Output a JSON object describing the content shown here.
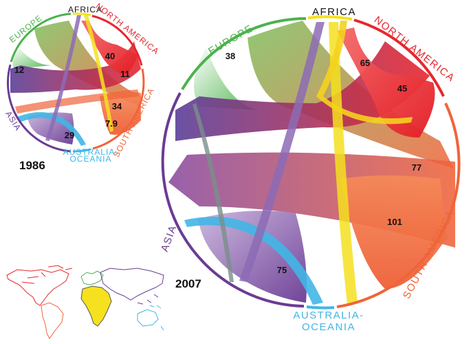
{
  "colors": {
    "africa": "#f5e11e",
    "europe": "#4bb34b",
    "north_america": "#e8262e",
    "south_america": "#f0643a",
    "asia": "#6b3b94",
    "oceania": "#41b6e6"
  },
  "small_diagram": {
    "year": "1986",
    "regions": {
      "africa": "AFRICA",
      "europe": "EUROPE",
      "north_america": "NORTH AMERICA",
      "south_america": "SOUTH AMERICA",
      "asia": "ASIA",
      "oceania_line1": "AUSTRALIA-",
      "oceania_line2": "OCEANIA"
    },
    "values": [
      "40",
      "12",
      "11",
      "34",
      "7.9",
      "29"
    ]
  },
  "large_diagram": {
    "year": "2007",
    "regions": {
      "africa": "AFRICA",
      "europe": "EUROPE",
      "north_america": "NORTH AMERICA",
      "south_america": "SOUTH AMERICA",
      "asia": "ASIA",
      "oceania_line1": "AUSTRALIA-",
      "oceania_line2": "OCEANIA"
    },
    "values": [
      "38",
      "65",
      "45",
      "77",
      "101",
      "75"
    ]
  },
  "map": {
    "legend_icon": "world-map-icon"
  }
}
